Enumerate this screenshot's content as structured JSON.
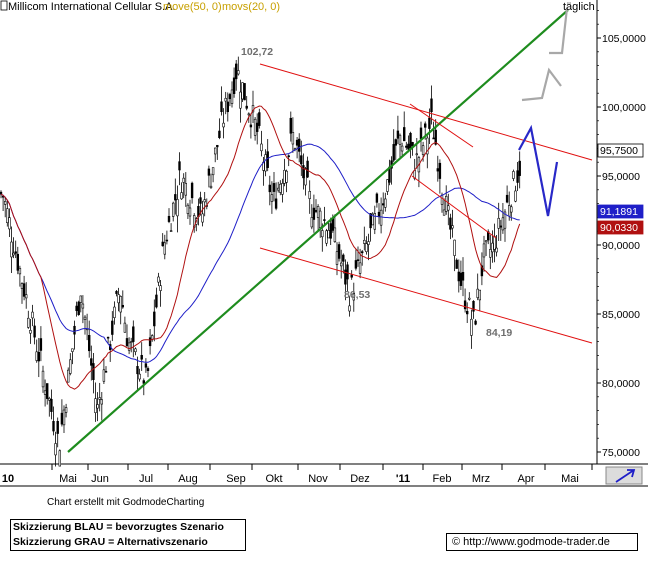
{
  "chart_data": {
    "type": "candlestick",
    "title": "Millicom International Cellular S.A.",
    "indicators": [
      {
        "name": "move(50, 0)",
        "color": "#1f1fc8"
      },
      {
        "name": "movs(20, 0)",
        "color": "#b01010"
      }
    ],
    "period_label": "täglich",
    "x_axis_labels": [
      "10",
      "Mai",
      "Jun",
      "Jul",
      "Aug",
      "Sep",
      "Okt",
      "Nov",
      "Dez",
      "'11",
      "Feb",
      "Mrz",
      "Apr",
      "Mai"
    ],
    "y_ticks": [
      75000,
      80000,
      85000,
      90000,
      95000,
      100000,
      105000
    ],
    "y_tick_labels": [
      "75,0000",
      "80,0000",
      "85,0000",
      "90,0000",
      "95,0000",
      "100,0000",
      "105,0000"
    ],
    "ylim": [
      73500,
      107500
    ],
    "price_tags": [
      {
        "label": "95,7500",
        "value": 95.75,
        "bg": "#ffffff",
        "fg": "#000000"
      },
      {
        "label": "91,1891",
        "value": 91.1891,
        "bg": "#1f1fc8",
        "fg": "#ffffff"
      },
      {
        "label": "90,0330",
        "value": 90.033,
        "bg": "#b01010",
        "fg": "#ffffff"
      }
    ],
    "annotations": [
      {
        "text": "102,72",
        "value": 102.72
      },
      {
        "text": "86,53",
        "value": 86.53
      },
      {
        "text": "84,19",
        "value": 84.19
      }
    ],
    "trendlines": [
      {
        "name": "uptrend",
        "color": "#1e8c1e"
      },
      {
        "name": "channel-upper",
        "color": "#e01010"
      },
      {
        "name": "channel-lower",
        "color": "#e01010"
      }
    ],
    "scenarios": [
      {
        "name": "blue",
        "color": "#2828c8"
      },
      {
        "name": "gray",
        "color": "#a8a8a8"
      }
    ],
    "price_series_keypoints": [
      [
        "Apr 10",
        90
      ],
      [
        "Apr 20",
        94
      ],
      [
        "Mai 7",
        75.5
      ],
      [
        "Mai 25",
        87
      ],
      [
        "Jun 8",
        78
      ],
      [
        "Jun 25",
        87
      ],
      [
        "Jul 1",
        83
      ],
      [
        "Jul 15",
        80
      ],
      [
        "Jul 28",
        90
      ],
      [
        "Aug 10",
        95
      ],
      [
        "Aug 25",
        92
      ],
      [
        "Sep 10",
        99
      ],
      [
        "Sep 20",
        102.72
      ],
      [
        "Okt 5",
        98
      ],
      [
        "Okt 15",
        93
      ],
      [
        "Okt 28",
        98
      ],
      [
        "Nov 10",
        93
      ],
      [
        "Nov 25",
        91
      ],
      [
        "Dez 8",
        86.53
      ],
      [
        "Dez 20",
        90
      ],
      [
        "Jan 3",
        94
      ],
      [
        "Jan 14",
        98
      ],
      [
        "Jan 26",
        96
      ],
      [
        "Feb 8",
        99
      ],
      [
        "Feb 20",
        92
      ],
      [
        "Mrz 1",
        87
      ],
      [
        "Mrz 10",
        84.19
      ],
      [
        "Mrz 17",
        89
      ],
      [
        "Mrz 25",
        90
      ],
      [
        "Apr 1",
        95.75
      ]
    ]
  },
  "footer": {
    "credit": "Chart erstellt mit GodmodeCharting",
    "legend_line1": "Skizzierung BLAU = bevorzugtes Szenario",
    "legend_line2": "Skizzierung GRAU = Alternativszenario",
    "source": "© http://www.godmode-trader.de"
  }
}
